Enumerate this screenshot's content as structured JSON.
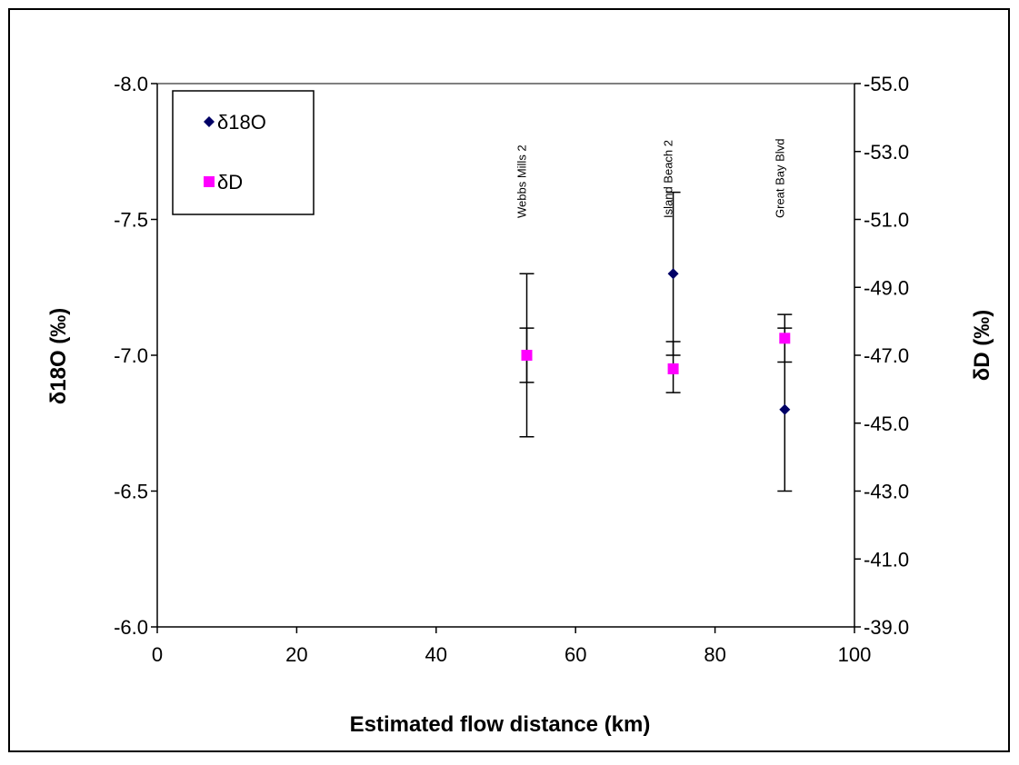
{
  "chart_data": {
    "type": "scatter",
    "title": "",
    "xlabel": "Estimated flow distance (km)",
    "ylabel": "δ18O (‰)",
    "y2label": "δD (‰)",
    "xlim": [
      0,
      100
    ],
    "ylim": [
      -8.0,
      -6.0
    ],
    "y_reversed": true,
    "y2lim": [
      -55.0,
      -39.0
    ],
    "y2_reversed": true,
    "grid": false,
    "legend_position": "top-left",
    "x_ticks": [
      "0",
      "20",
      "40",
      "60",
      "80",
      "100"
    ],
    "y_ticks": [
      "-8.0",
      "-7.5",
      "-7.0",
      "-6.5",
      "-6.0"
    ],
    "y2_ticks": [
      "-55.0",
      "-53.0",
      "-51.0",
      "-49.0",
      "-47.0",
      "-45.0",
      "-43.0",
      "-41.0",
      "-39.0"
    ],
    "annotations": [
      {
        "text": "Webbs Mills 2",
        "x": 53
      },
      {
        "text": "Island Beach 2",
        "x": 74
      },
      {
        "text": "Great Bay Blvd",
        "x": 90
      }
    ],
    "series": [
      {
        "name": "δ18O",
        "axis": "left",
        "color": "#000066",
        "marker": "diamond",
        "points": [
          {
            "x": 53,
            "y": -7.0,
            "err_low": -6.7,
            "err_high": -7.3
          },
          {
            "x": 74,
            "y": -7.3,
            "err_low": -7.0,
            "err_high": -7.6
          },
          {
            "x": 90,
            "y": -6.8,
            "err_low": -6.5,
            "err_high": -7.1
          }
        ]
      },
      {
        "name": "δD",
        "axis": "right",
        "color": "#ff00ff",
        "marker": "square",
        "points": [
          {
            "x": 53,
            "y": -47.0,
            "err_low": -46.2,
            "err_high": -47.8
          },
          {
            "x": 74,
            "y": -46.6,
            "err_low": -45.9,
            "err_high": -47.4
          },
          {
            "x": 90,
            "y": -47.5,
            "err_low": -46.8,
            "err_high": -48.2
          }
        ]
      }
    ]
  }
}
